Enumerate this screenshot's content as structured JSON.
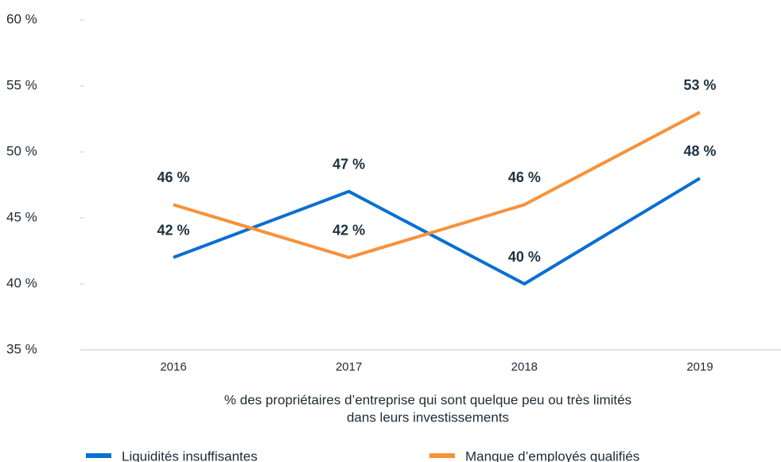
{
  "chart_data": {
    "type": "line",
    "xlabel": [
      "% des propriétaires d’entreprise qui sont quelque peu ou très limités",
      "dans leurs investissements"
    ],
    "categories": [
      "2016",
      "2017",
      "2018",
      "2019"
    ],
    "series": [
      {
        "name": "Liquidités insuffisantes",
        "color": "#0a6fd0",
        "values": [
          42,
          47,
          40,
          48
        ],
        "value_labels": [
          "42 %",
          "47 %",
          "40 %",
          "48 %"
        ]
      },
      {
        "name": "Manque d’employés qualifiés",
        "color": "#f7923a",
        "values": [
          46,
          42,
          46,
          53
        ],
        "value_labels": [
          "46 %",
          "42 %",
          "46 %",
          "53 %"
        ]
      }
    ],
    "ylim": [
      35,
      60
    ],
    "yticks": [
      {
        "value": 35,
        "label": "35 %"
      },
      {
        "value": 40,
        "label": "40 %"
      },
      {
        "value": 45,
        "label": "45 %"
      },
      {
        "value": 50,
        "label": "50 %"
      },
      {
        "value": 55,
        "label": "55 %"
      },
      {
        "value": 60,
        "label": "60 %"
      }
    ]
  }
}
